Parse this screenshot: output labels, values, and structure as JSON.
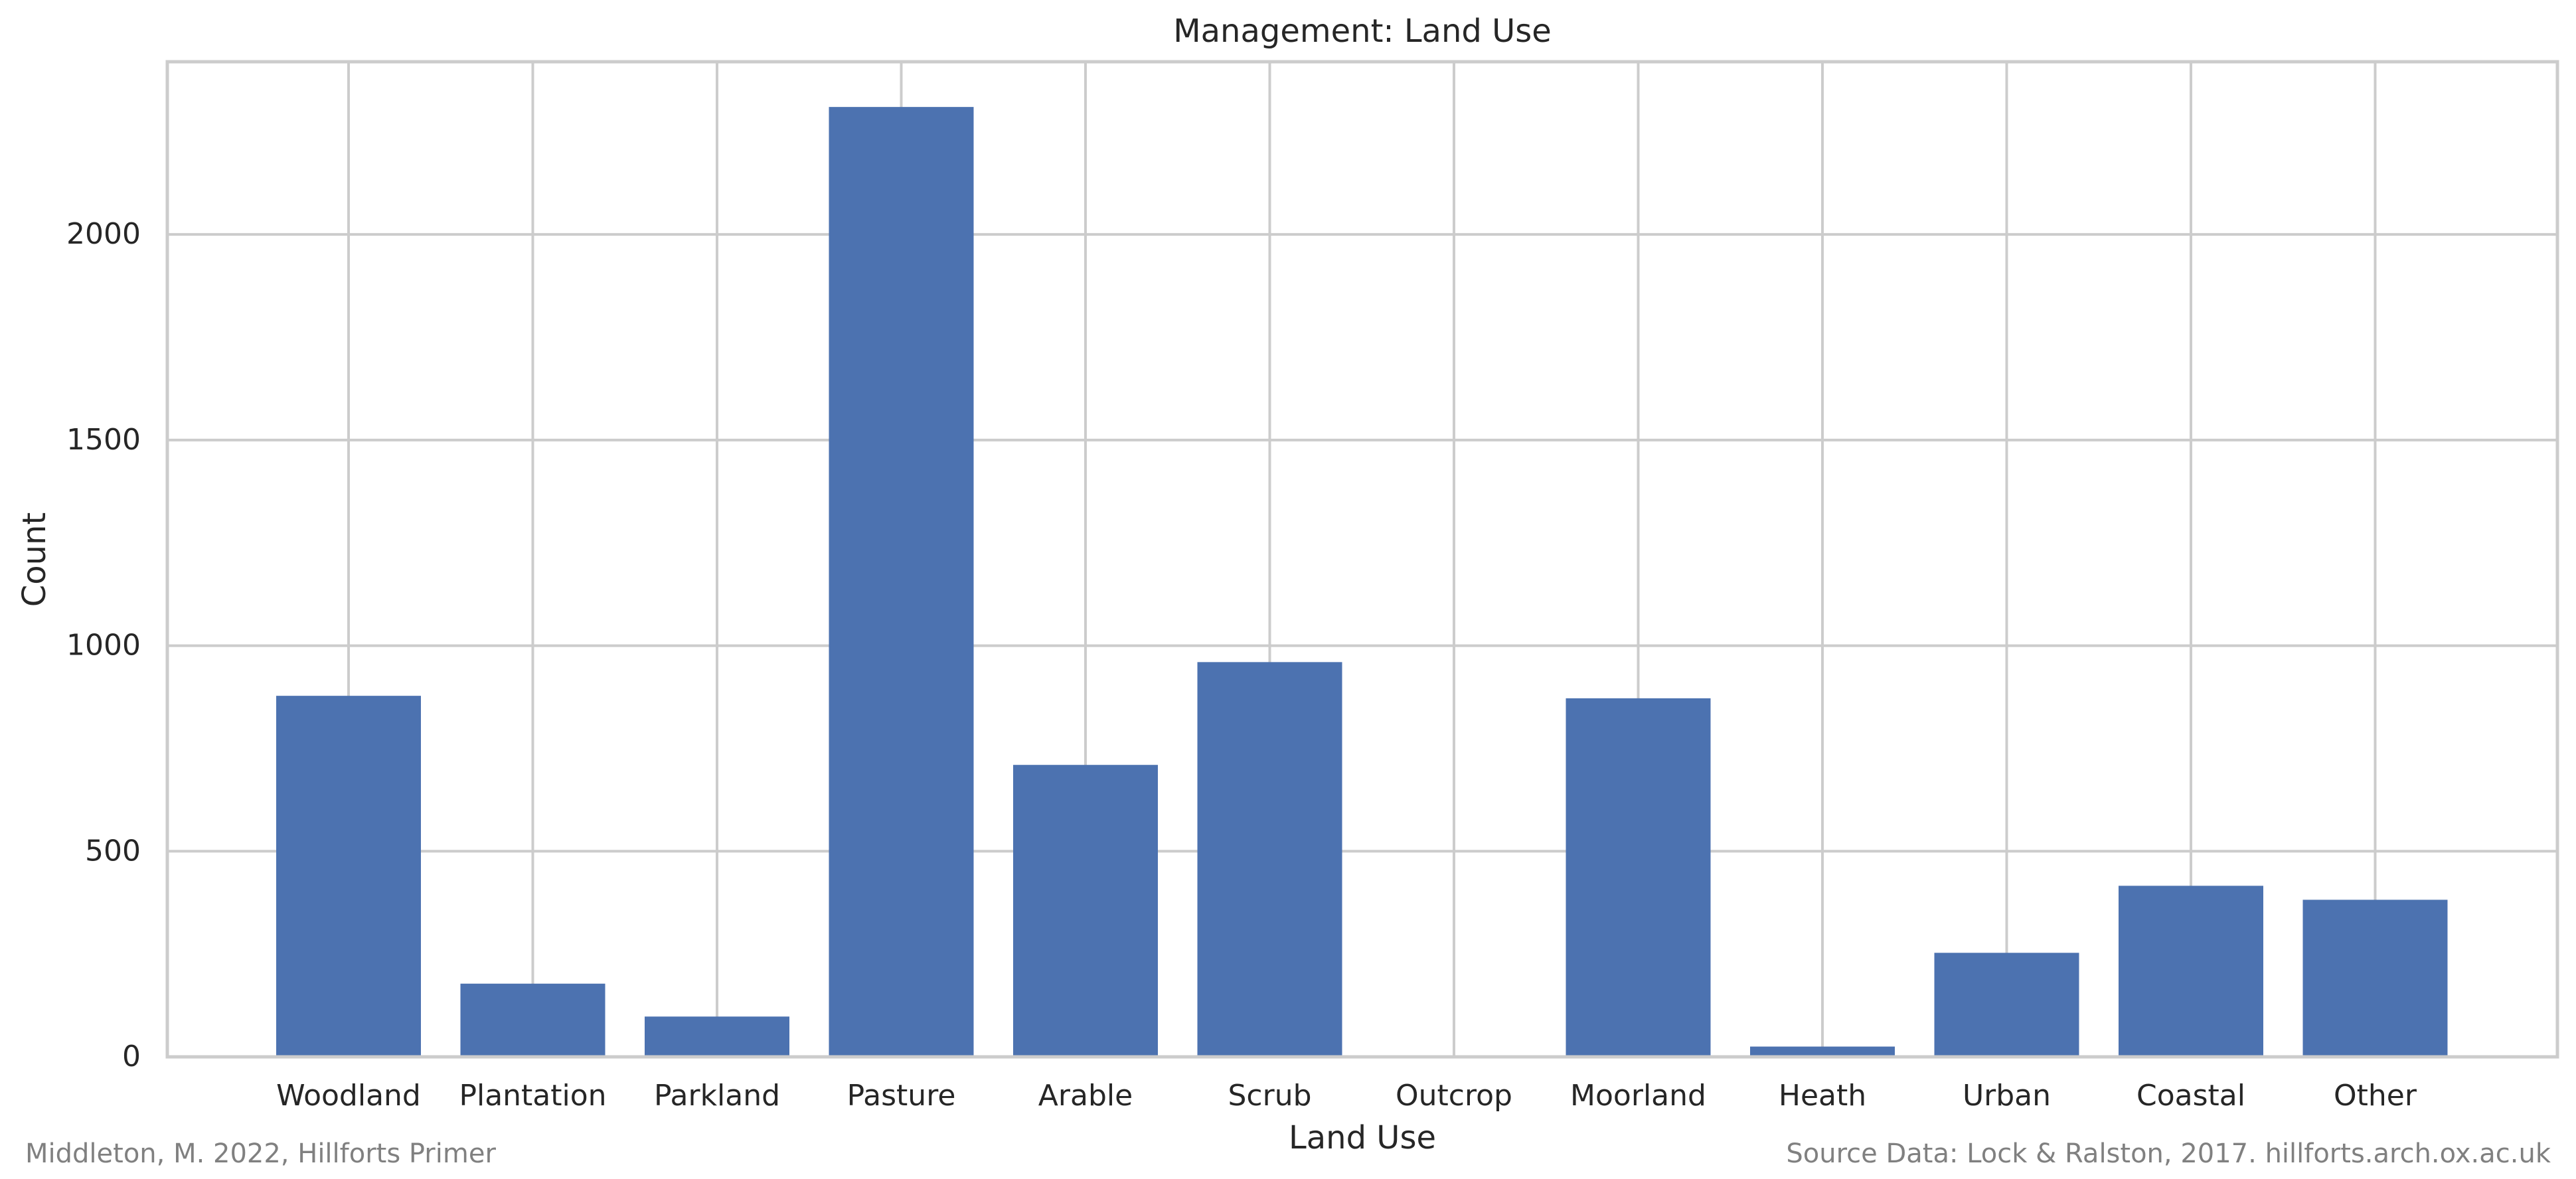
{
  "chart_data": {
    "type": "bar",
    "title": "Management: Land Use",
    "xlabel": "Land Use",
    "ylabel": "Count",
    "categories": [
      "Woodland",
      "Plantation",
      "Parkland",
      "Pasture",
      "Arable",
      "Scrub",
      "Outcrop",
      "Moorland",
      "Heath",
      "Urban",
      "Coastal",
      "Other"
    ],
    "values": [
      878,
      178,
      98,
      2310,
      710,
      960,
      0,
      872,
      25,
      253,
      416,
      382
    ],
    "ylim": [
      0,
      2420
    ],
    "yticks": [
      0,
      500,
      1000,
      1500,
      2000
    ],
    "grid": true,
    "bar_color": "#4c72b0"
  },
  "footer": {
    "left": "Middleton, M. 2022, Hillforts Primer",
    "right": "Source Data: Lock & Ralston, 2017. hillforts.arch.ox.ac.uk"
  }
}
